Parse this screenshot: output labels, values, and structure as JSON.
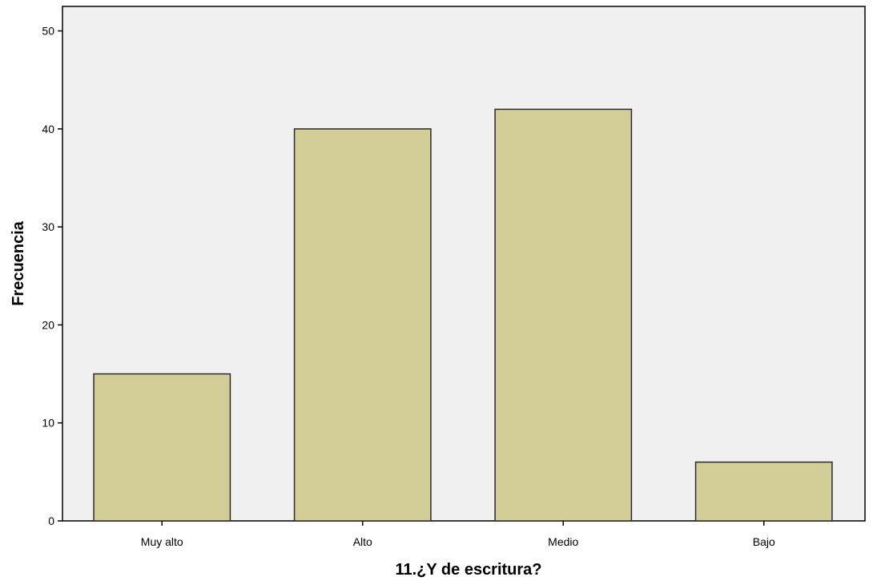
{
  "chart_data": {
    "type": "bar",
    "title": "",
    "xlabel": "11.¿Y de escritura?",
    "ylabel": "Frecuencia",
    "categories": [
      "Muy alto",
      "Alto",
      "Medio",
      "Bajo"
    ],
    "values": [
      15,
      40,
      42,
      6
    ],
    "ylim": [
      0,
      52.5
    ],
    "yticks": [
      0,
      10,
      20,
      30,
      40,
      50
    ],
    "grid": false,
    "legend": "none",
    "colors": {
      "bar_fill": "#d3ce97",
      "bar_stroke": "#2a2a2a",
      "plot_background": "#f0f0f0",
      "page_background": "#ffffff"
    }
  }
}
